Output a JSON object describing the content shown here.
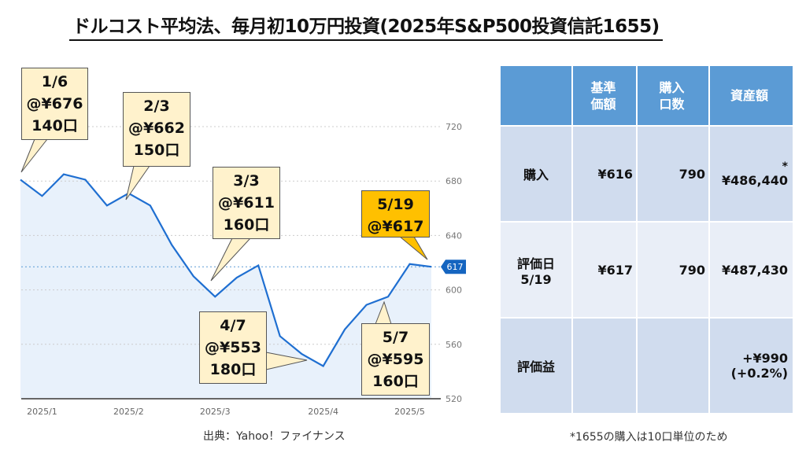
{
  "title": "ドルコスト平均法、毎月初10万円投資(2025年S&P500投資信託1655)",
  "chart_data": {
    "type": "area",
    "title": "",
    "xlabel": "",
    "ylabel": "",
    "values": [
      681,
      669,
      685,
      681,
      662,
      671,
      662,
      633,
      610,
      595,
      609,
      618,
      566,
      553,
      544,
      571,
      589,
      595,
      619,
      617
    ],
    "ylim": [
      520,
      720
    ],
    "yticks": [
      "720",
      "680",
      "640",
      "600",
      "560",
      "520"
    ],
    "xticks": [
      {
        "label": "2025/1",
        "index": 1
      },
      {
        "label": "2025/2",
        "index": 5
      },
      {
        "label": "2025/3",
        "index": 9
      },
      {
        "label": "2025/4",
        "index": 14
      },
      {
        "label": "2025/5",
        "index": 18
      }
    ],
    "current": {
      "value": 617,
      "label": "617"
    },
    "color": "#1f6fd1",
    "fill": "#e8f1fb"
  },
  "callouts": [
    {
      "date": "1/6",
      "price": "@¥676",
      "units": "140口"
    },
    {
      "date": "2/3",
      "price": "@¥662",
      "units": "150口"
    },
    {
      "date": "3/3",
      "price": "@¥611",
      "units": "160口"
    },
    {
      "date": "4/7",
      "price": "@¥553",
      "units": "180口"
    },
    {
      "date": "5/7",
      "price": "@¥595",
      "units": "160口"
    },
    {
      "date": "5/19",
      "price": "@¥617"
    }
  ],
  "source": "出典：Yahoo！ファイナンス",
  "table": {
    "headers": [
      "",
      "基準\n価額",
      "購入\n口数",
      "資産額"
    ],
    "rows": [
      {
        "label": "購入",
        "price": "¥616",
        "units": "790",
        "asset_mark": "*",
        "asset": "¥486,440"
      },
      {
        "label": "評価日\n5/19",
        "price": "¥617",
        "units": "790",
        "asset": "¥487,430"
      },
      {
        "label": "評価益",
        "price": "",
        "units": "",
        "asset": "+¥990",
        "asset2": "(+0.2%)"
      }
    ]
  },
  "note": "*1655の購入は10口単位のため"
}
